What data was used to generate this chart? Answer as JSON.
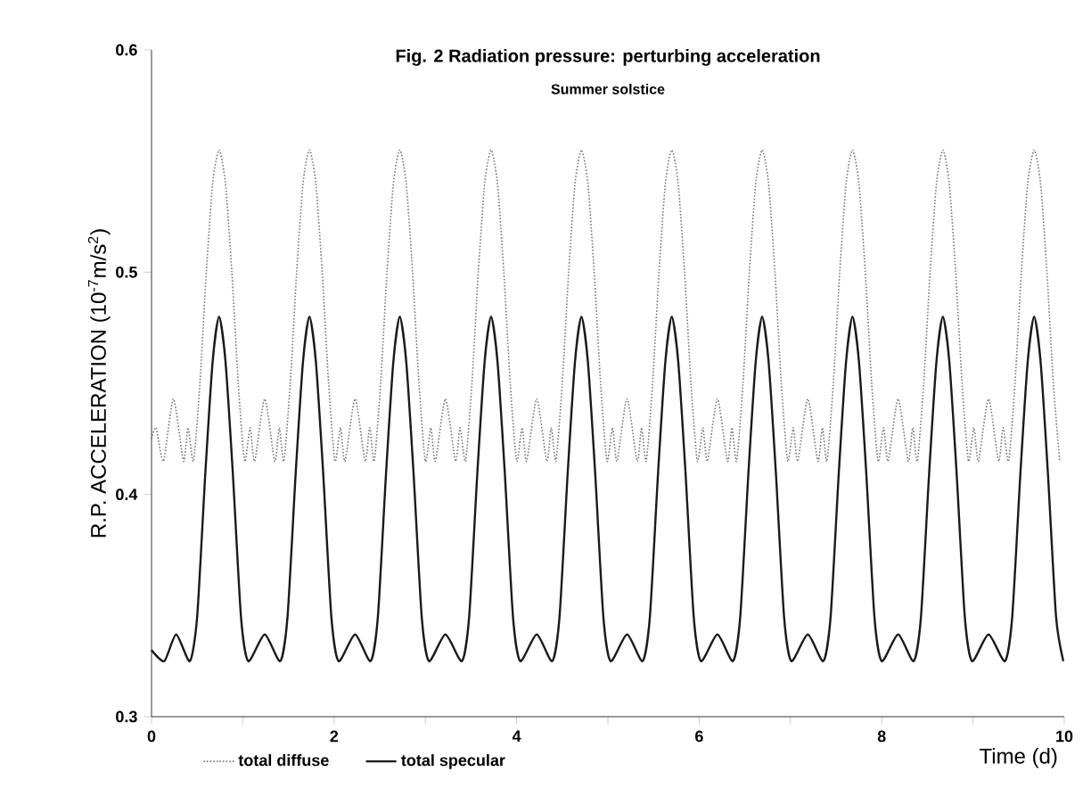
{
  "chart_data": {
    "type": "line",
    "title": "Fig. 2  Radiation pressure: perturbing  acceleration",
    "subtitle": "Summer solstice",
    "xlabel": "Time (d)",
    "ylabel": "R.P. ACCELERATION  (10$^{-7}$m/s$^{2}$)",
    "xlim": [
      0,
      10
    ],
    "ylim": [
      0.3,
      0.6
    ],
    "xticks": [
      0,
      {
        "value": 1,
        "label": null
      },
      2,
      {
        "value": 3,
        "label": null
      },
      4,
      {
        "value": 5,
        "label": null
      },
      6,
      {
        "value": 7,
        "label": null
      },
      8,
      {
        "value": 9,
        "label": null
      },
      10
    ],
    "yticks": [
      0.3,
      0.4,
      0.5,
      0.6
    ],
    "grid": false,
    "legend": "bottom",
    "marker": "none",
    "series": [
      {
        "name": "total diffuse",
        "color": "#777777",
        "line_style": "dotted",
        "x": [
          0,
          0.05,
          0.13,
          0.24,
          0.35,
          0.4,
          0.46,
          0.53,
          0.6,
          0.67,
          0.74,
          0.81,
          0.88,
          0.95,
          1.02,
          1.08,
          1.13,
          1.24,
          1.35,
          1.4,
          1.45,
          1.52,
          1.59,
          1.66,
          1.73,
          1.8,
          1.87,
          1.94,
          2.01,
          2.07,
          2.12,
          2.23,
          2.34,
          2.39,
          2.44,
          2.51,
          2.58,
          2.65,
          2.72,
          2.79,
          2.86,
          2.93,
          3.0,
          3.06,
          3.11,
          3.22,
          3.33,
          3.38,
          3.44,
          3.51,
          3.58,
          3.65,
          3.72,
          3.79,
          3.86,
          3.93,
          4.0,
          4.06,
          4.11,
          4.22,
          4.33,
          4.38,
          4.43,
          4.5,
          4.57,
          4.64,
          4.71,
          4.78,
          4.85,
          4.92,
          4.99,
          5.05,
          5.1,
          5.21,
          5.32,
          5.37,
          5.42,
          5.49,
          5.56,
          5.63,
          5.7,
          5.77,
          5.84,
          5.91,
          5.98,
          6.04,
          6.09,
          6.2,
          6.31,
          6.36,
          6.41,
          6.48,
          6.55,
          6.62,
          6.69,
          6.76,
          6.83,
          6.9,
          6.97,
          7.03,
          7.08,
          7.19,
          7.3,
          7.35,
          7.4,
          7.47,
          7.54,
          7.61,
          7.68,
          7.75,
          7.82,
          7.89,
          7.96,
          8.02,
          8.07,
          8.18,
          8.29,
          8.34,
          8.39,
          8.46,
          8.53,
          8.6,
          8.67,
          8.74,
          8.81,
          8.88,
          8.95,
          9.01,
          9.06,
          9.17,
          9.28,
          9.33,
          9.39,
          9.46,
          9.53,
          9.6,
          9.67,
          9.74,
          9.81,
          9.88,
          9.95
        ],
        "values": [
          0.425,
          0.43,
          0.415,
          0.443,
          0.415,
          0.43,
          0.415,
          0.45,
          0.5,
          0.54,
          0.555,
          0.54,
          0.5,
          0.45,
          0.415,
          0.43,
          0.415,
          0.443,
          0.415,
          0.43,
          0.415,
          0.45,
          0.5,
          0.54,
          0.555,
          0.54,
          0.5,
          0.45,
          0.415,
          0.43,
          0.415,
          0.443,
          0.415,
          0.43,
          0.415,
          0.45,
          0.5,
          0.54,
          0.555,
          0.54,
          0.5,
          0.45,
          0.415,
          0.43,
          0.415,
          0.443,
          0.415,
          0.43,
          0.415,
          0.45,
          0.5,
          0.54,
          0.555,
          0.54,
          0.5,
          0.45,
          0.415,
          0.43,
          0.415,
          0.443,
          0.415,
          0.43,
          0.415,
          0.45,
          0.5,
          0.54,
          0.555,
          0.54,
          0.5,
          0.45,
          0.415,
          0.43,
          0.415,
          0.443,
          0.415,
          0.43,
          0.415,
          0.45,
          0.5,
          0.54,
          0.555,
          0.54,
          0.5,
          0.45,
          0.415,
          0.43,
          0.415,
          0.443,
          0.415,
          0.43,
          0.415,
          0.45,
          0.5,
          0.54,
          0.555,
          0.54,
          0.5,
          0.45,
          0.415,
          0.43,
          0.415,
          0.443,
          0.415,
          0.43,
          0.415,
          0.45,
          0.5,
          0.54,
          0.555,
          0.54,
          0.5,
          0.45,
          0.415,
          0.43,
          0.415,
          0.443,
          0.415,
          0.43,
          0.415,
          0.45,
          0.5,
          0.54,
          0.555,
          0.54,
          0.5,
          0.45,
          0.415,
          0.43,
          0.415,
          0.443,
          0.415,
          0.43,
          0.415,
          0.45,
          0.5,
          0.54,
          0.555,
          0.54,
          0.5,
          0.45,
          0.415
        ]
      },
      {
        "name": "total specular",
        "color": "#1a1a1a",
        "line_style": "solid",
        "x": [
          0,
          0.14,
          0.27,
          0.42,
          0.5,
          0.59,
          0.67,
          0.74,
          0.81,
          0.89,
          0.98,
          1.06,
          1.24,
          1.41,
          1.49,
          1.58,
          1.66,
          1.73,
          1.8,
          1.88,
          1.97,
          2.05,
          2.23,
          2.4,
          2.48,
          2.57,
          2.65,
          2.72,
          2.79,
          2.87,
          2.96,
          3.04,
          3.22,
          3.4,
          3.48,
          3.57,
          3.65,
          3.72,
          3.79,
          3.87,
          3.96,
          4.04,
          4.22,
          4.39,
          4.47,
          4.56,
          4.64,
          4.71,
          4.78,
          4.86,
          4.95,
          5.03,
          5.21,
          5.38,
          5.46,
          5.55,
          5.63,
          5.7,
          5.77,
          5.85,
          5.94,
          6.02,
          6.2,
          6.37,
          6.45,
          6.54,
          6.62,
          6.69,
          6.76,
          6.84,
          6.93,
          7.01,
          7.19,
          7.36,
          7.44,
          7.53,
          7.61,
          7.68,
          7.75,
          7.83,
          7.92,
          8.0,
          8.18,
          8.35,
          8.43,
          8.52,
          8.6,
          8.67,
          8.74,
          8.82,
          8.91,
          8.99,
          9.17,
          9.35,
          9.43,
          9.52,
          9.6,
          9.67,
          9.74,
          9.82,
          9.91,
          9.99
        ],
        "values": [
          0.33,
          0.325,
          0.337,
          0.325,
          0.345,
          0.41,
          0.46,
          0.48,
          0.46,
          0.41,
          0.345,
          0.325,
          0.337,
          0.325,
          0.345,
          0.41,
          0.46,
          0.48,
          0.46,
          0.41,
          0.345,
          0.325,
          0.337,
          0.325,
          0.345,
          0.41,
          0.46,
          0.48,
          0.46,
          0.41,
          0.345,
          0.325,
          0.337,
          0.325,
          0.345,
          0.41,
          0.46,
          0.48,
          0.46,
          0.41,
          0.345,
          0.325,
          0.337,
          0.325,
          0.345,
          0.41,
          0.46,
          0.48,
          0.46,
          0.41,
          0.345,
          0.325,
          0.337,
          0.325,
          0.345,
          0.41,
          0.46,
          0.48,
          0.46,
          0.41,
          0.345,
          0.325,
          0.337,
          0.325,
          0.345,
          0.41,
          0.46,
          0.48,
          0.46,
          0.41,
          0.345,
          0.325,
          0.337,
          0.325,
          0.345,
          0.41,
          0.46,
          0.48,
          0.46,
          0.41,
          0.345,
          0.325,
          0.337,
          0.325,
          0.345,
          0.41,
          0.46,
          0.48,
          0.46,
          0.41,
          0.345,
          0.325,
          0.337,
          0.325,
          0.345,
          0.41,
          0.46,
          0.48,
          0.46,
          0.41,
          0.345,
          0.325
        ]
      }
    ]
  }
}
